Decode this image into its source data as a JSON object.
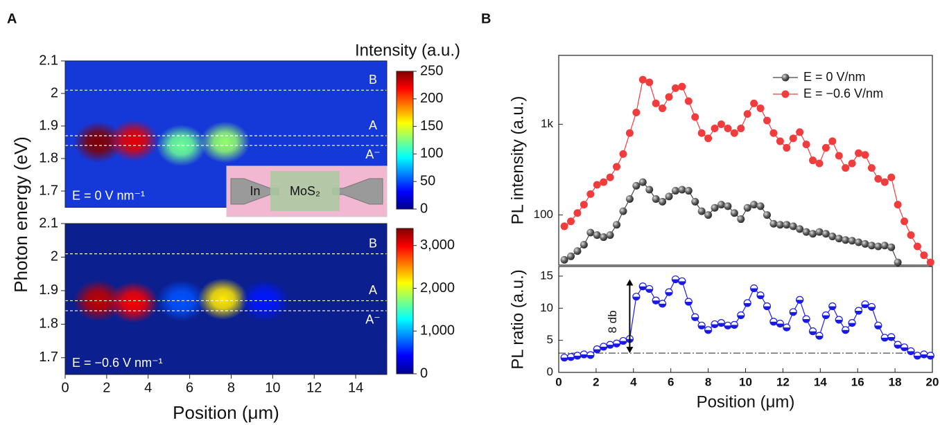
{
  "chart_data": [
    {
      "type": "heatmap",
      "panel": "A",
      "ylabel": "Photon energy (eV)",
      "colorbar_label": "Intensity (a.u.)",
      "xlim": [
        0,
        15.5
      ],
      "ylim": [
        1.65,
        2.1
      ],
      "yticks": [
        1.7,
        1.8,
        1.9,
        2.0,
        2.1
      ],
      "background": "#1538d8",
      "x": [
        1.6,
        3.3,
        5.6,
        7.7
      ],
      "y": [
        1.85,
        1.855,
        1.84,
        1.85
      ],
      "values": [
        250,
        225,
        120,
        130
      ],
      "reference_lines": [
        {
          "value": 2.01,
          "label": "B"
        },
        {
          "value": 1.87,
          "label": "A"
        },
        {
          "value": 1.84,
          "label": "A⁻"
        }
      ],
      "annotation": "E = 0 V nm⁻¹",
      "inset_labels": [
        "In",
        "MoS₂"
      ],
      "clim": [
        0,
        250
      ],
      "cticks": [
        0,
        50,
        100,
        150,
        200,
        250
      ]
    },
    {
      "type": "heatmap",
      "xlabel": "Position (μm)",
      "xlim": [
        0,
        15.5
      ],
      "ylim": [
        1.65,
        2.1
      ],
      "xticks": [
        0,
        2,
        4,
        6,
        8,
        10,
        12,
        14
      ],
      "yticks": [
        1.7,
        1.8,
        1.9,
        2.0,
        2.1
      ],
      "background": "#0b1f8f",
      "x": [
        1.6,
        3.3,
        5.6,
        7.6,
        9.6
      ],
      "y": [
        1.87,
        1.865,
        1.87,
        1.875,
        1.87
      ],
      "values": [
        3200,
        3000,
        700,
        2200,
        500
      ],
      "reference_lines": [
        {
          "value": 2.01,
          "label": "B"
        },
        {
          "value": 1.87,
          "label": "A"
        },
        {
          "value": 1.84,
          "label": "A⁻"
        }
      ],
      "annotation": "E = −0.6 V nm⁻¹",
      "clim": [
        0,
        3400
      ],
      "cticks": [
        0,
        {
          "value": 1000,
          "label": "1,000"
        },
        {
          "value": 2000,
          "label": "2,000"
        },
        {
          "value": 3000,
          "label": "3,000"
        }
      ]
    },
    {
      "type": "line",
      "panel": "B",
      "ylabel": "PL intensity (a.u.)",
      "ylog": true,
      "legend": "upper right",
      "xlim": [
        0,
        20
      ],
      "ylim": [
        28,
        5750
      ],
      "yticks": [
        100,
        {
          "value": 1000,
          "label": "1k"
        }
      ],
      "x": [
        0.3,
        0.65,
        1.0,
        1.35,
        1.7,
        2.05,
        2.4,
        2.75,
        3.1,
        3.45,
        3.8,
        4.15,
        4.5,
        4.85,
        5.2,
        5.55,
        5.9,
        6.25,
        6.6,
        6.95,
        7.3,
        7.65,
        8.0,
        8.35,
        8.7,
        9.05,
        9.4,
        9.75,
        10.1,
        10.45,
        10.8,
        11.15,
        11.5,
        11.85,
        12.2,
        12.55,
        12.9,
        13.25,
        13.6,
        13.95,
        14.3,
        14.65,
        15.0,
        15.35,
        15.7,
        16.05,
        16.4,
        16.75,
        17.1,
        17.45,
        17.8,
        18.15,
        18.5,
        18.85,
        19.2,
        19.55,
        19.9
      ],
      "series": [
        {
          "name": "E = 0  V/nm",
          "color": "#444444",
          "marker": "sphere",
          "values": [
            32,
            35,
            40,
            47,
            64,
            60,
            57,
            60,
            78,
            110,
            150,
            210,
            230,
            190,
            150,
            140,
            160,
            185,
            190,
            185,
            140,
            110,
            100,
            120,
            130,
            125,
            105,
            90,
            120,
            130,
            125,
            100,
            80,
            78,
            78,
            75,
            70,
            65,
            62,
            65,
            62,
            58,
            55,
            53,
            52,
            50,
            48,
            46,
            45,
            46,
            44,
            30,
            null,
            null,
            null,
            null,
            null
          ]
        },
        {
          "name": "E = −0.6 V/nm",
          "color": "#f03c3c",
          "marker": "circle",
          "values": [
            75,
            85,
            105,
            130,
            170,
            215,
            230,
            260,
            340,
            470,
            800,
            1350,
            3100,
            2900,
            1700,
            1500,
            2000,
            2500,
            2600,
            1800,
            1200,
            800,
            700,
            900,
            1000,
            900,
            800,
            900,
            1300,
            1700,
            1500,
            1100,
            800,
            650,
            550,
            700,
            820,
            600,
            400,
            370,
            550,
            650,
            450,
            330,
            370,
            480,
            460,
            330,
            250,
            230,
            260,
            130,
            85,
            60,
            45,
            36,
            30
          ]
        }
      ]
    },
    {
      "type": "line",
      "ylabel": "PL ratio (a.u.)",
      "xlabel": "Position (μm)",
      "xlim": [
        0,
        20
      ],
      "ylim": [
        0,
        16.5
      ],
      "xticks": [
        0,
        2,
        4,
        6,
        8,
        10,
        12,
        14,
        16,
        18,
        20
      ],
      "yticks": [
        0,
        5,
        10,
        15
      ],
      "hline": 3,
      "annotation": "8 db",
      "arrow": {
        "x": 3.8,
        "from": 3,
        "to": 14.5
      },
      "x": [
        0.3,
        0.65,
        1.0,
        1.35,
        1.7,
        2.05,
        2.4,
        2.75,
        3.1,
        3.45,
        3.8,
        4.15,
        4.5,
        4.85,
        5.2,
        5.55,
        5.9,
        6.25,
        6.6,
        6.95,
        7.3,
        7.65,
        8.0,
        8.35,
        8.7,
        9.05,
        9.4,
        9.75,
        10.1,
        10.45,
        10.8,
        11.15,
        11.5,
        11.85,
        12.2,
        12.55,
        12.9,
        13.25,
        13.6,
        13.95,
        14.3,
        14.65,
        15.0,
        15.35,
        15.7,
        16.05,
        16.4,
        16.75,
        17.1,
        17.45,
        17.8,
        18.15,
        18.5,
        18.85,
        19.2,
        19.55,
        19.9
      ],
      "series": [
        {
          "color": "#1a1ae6",
          "marker": "half",
          "values": [
            2.3,
            2.4,
            2.6,
            2.8,
            2.7,
            3.6,
            4.0,
            4.3,
            4.5,
            4.9,
            5.2,
            11.8,
            13.4,
            13.0,
            11.2,
            10.7,
            12.5,
            14.5,
            14.2,
            11.0,
            8.6,
            7.3,
            6.6,
            7.5,
            7.7,
            7.3,
            7.4,
            8.9,
            10.8,
            13.1,
            12.0,
            10.3,
            7.9,
            7.6,
            7.0,
            9.4,
            11.3,
            8.3,
            6.4,
            5.7,
            8.9,
            10.3,
            8.2,
            6.6,
            7.7,
            9.6,
            10.6,
            10.2,
            7.3,
            5.4,
            5.5,
            4.3,
            3.9,
            3.3,
            2.6,
            2.8,
            2.6
          ]
        }
      ]
    }
  ]
}
